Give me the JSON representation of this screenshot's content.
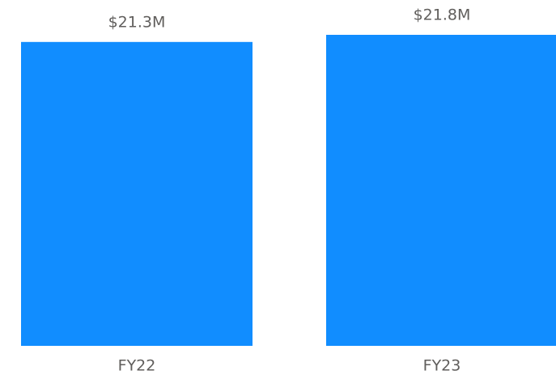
{
  "chart_data": {
    "type": "bar",
    "categories": [
      "FY22",
      "FY23"
    ],
    "values": [
      21.3,
      21.8
    ],
    "value_labels": [
      "$21.3M",
      "$21.8M"
    ],
    "color": "#118dff"
  }
}
